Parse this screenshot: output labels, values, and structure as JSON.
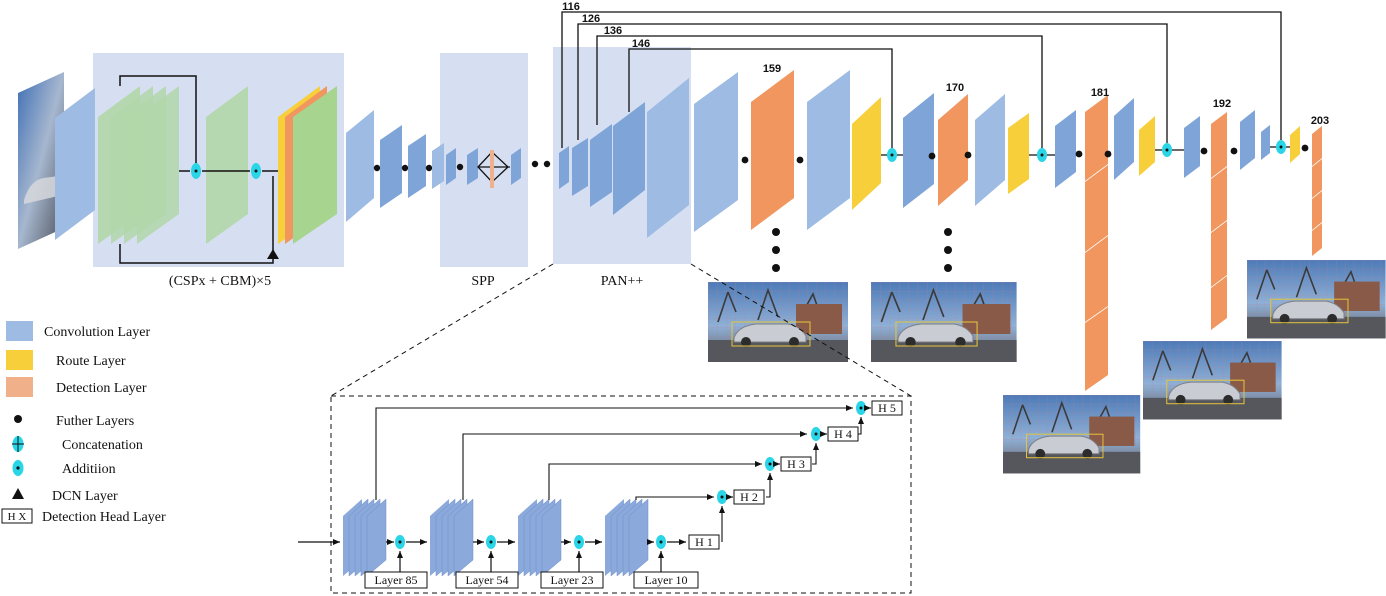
{
  "colors": {
    "convolution": "#9dbbe3",
    "convolution_dark": "#6f92c9",
    "route": "#f7cf3b",
    "detection": "#f0965e",
    "detection_dark": "#d97a40",
    "csp_green": "#b2d7a9",
    "group_bg": "#d6dff2",
    "cyan": "#29d5e6"
  },
  "group_labels": {
    "backbone": "(CSPx + CBM)×5",
    "spp": "SPP",
    "pan": "PAN++"
  },
  "route_numbers": {
    "r116": "116",
    "r126": "126",
    "r136": "136",
    "r146": "146"
  },
  "detection_numbers": {
    "d159": "159",
    "d170": "170",
    "d181": "181",
    "d192": "192",
    "d203": "203"
  },
  "legend": {
    "convolution": "Convolution Layer",
    "route": "Route Layer",
    "detection": "Detection Layer",
    "further": "Futher Layers",
    "concatenation": "Concatenation",
    "addition": "Additiion",
    "dcn": "DCN Layer",
    "head_symbol": "H X",
    "head": "Detection Head Layer"
  },
  "detail": {
    "layers": [
      "Layer 85",
      "Layer 54",
      "Layer 23",
      "Layer 10"
    ],
    "heads": [
      "H 1",
      "H 2",
      "H 3",
      "H 4",
      "H 5"
    ]
  },
  "icons": [
    "further-layers-dot-icon",
    "concatenation-icon",
    "addition-icon",
    "dcn-triangle-icon",
    "detection-head-box-icon"
  ]
}
